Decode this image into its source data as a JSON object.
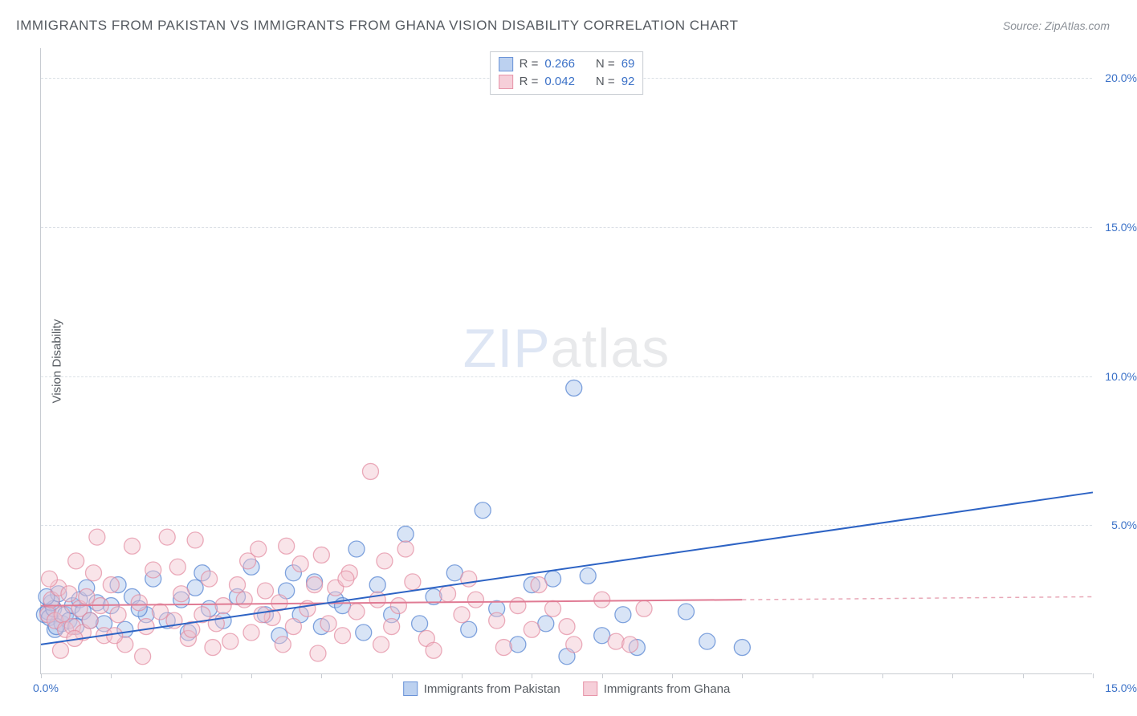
{
  "title": "IMMIGRANTS FROM PAKISTAN VS IMMIGRANTS FROM GHANA VISION DISABILITY CORRELATION CHART",
  "source_label": "Source: ZipAtlas.com",
  "watermark": {
    "part1": "ZIP",
    "part2": "atlas"
  },
  "y_axis_title": "Vision Disability",
  "chart": {
    "type": "scatter",
    "xlim": [
      0,
      15
    ],
    "ylim": [
      0,
      21
    ],
    "x_ticks_major": [
      0,
      1,
      2,
      3,
      4,
      5,
      6,
      7,
      8,
      9,
      10,
      11,
      12,
      13,
      14,
      15
    ],
    "x_tick_labels": {
      "0": "0.0%",
      "15": "15.0%"
    },
    "y_ticks": [
      5,
      10,
      15,
      20
    ],
    "y_tick_labels": {
      "5": "5.0%",
      "10": "10.0%",
      "15": "15.0%",
      "20": "20.0%"
    },
    "background_color": "#ffffff",
    "grid_color": "#dbe0e6",
    "axis_color": "#c8ccd2",
    "marker_radius": 10,
    "marker_opacity": 0.45,
    "marker_stroke_width": 1.3,
    "series": [
      {
        "name": "Immigrants from Pakistan",
        "fill_color": "#a9c3ea",
        "stroke_color": "#4f7fd0",
        "swatch_fill": "#bcd1f0",
        "swatch_border": "#6b94d8",
        "R": "0.266",
        "N": "69",
        "trend": {
          "x1": 0,
          "y1": 1.0,
          "x2": 15,
          "y2": 6.1,
          "color": "#2d63c4",
          "width": 2
        },
        "points": [
          [
            0.05,
            2.0
          ],
          [
            0.1,
            2.1
          ],
          [
            0.12,
            1.9
          ],
          [
            0.15,
            2.4
          ],
          [
            0.18,
            2.2
          ],
          [
            0.2,
            1.5
          ],
          [
            0.25,
            2.7
          ],
          [
            0.3,
            1.7
          ],
          [
            0.35,
            2.0
          ],
          [
            0.4,
            1.8
          ],
          [
            0.45,
            2.3
          ],
          [
            0.5,
            1.6
          ],
          [
            0.55,
            2.5
          ],
          [
            0.6,
            2.1
          ],
          [
            0.7,
            1.8
          ],
          [
            0.8,
            2.4
          ],
          [
            0.9,
            1.7
          ],
          [
            1.0,
            2.3
          ],
          [
            1.1,
            3.0
          ],
          [
            1.2,
            1.5
          ],
          [
            1.3,
            2.6
          ],
          [
            1.5,
            2.0
          ],
          [
            1.6,
            3.2
          ],
          [
            1.8,
            1.8
          ],
          [
            2.0,
            2.5
          ],
          [
            2.1,
            1.4
          ],
          [
            2.3,
            3.4
          ],
          [
            2.4,
            2.2
          ],
          [
            2.6,
            1.8
          ],
          [
            2.8,
            2.6
          ],
          [
            3.0,
            3.6
          ],
          [
            3.2,
            2.0
          ],
          [
            3.4,
            1.3
          ],
          [
            3.5,
            2.8
          ],
          [
            3.7,
            2.0
          ],
          [
            3.9,
            3.1
          ],
          [
            4.0,
            1.6
          ],
          [
            4.2,
            2.5
          ],
          [
            4.5,
            4.2
          ],
          [
            4.6,
            1.4
          ],
          [
            4.8,
            3.0
          ],
          [
            5.0,
            2.0
          ],
          [
            5.2,
            4.7
          ],
          [
            5.4,
            1.7
          ],
          [
            5.6,
            2.6
          ],
          [
            5.9,
            3.4
          ],
          [
            6.1,
            1.5
          ],
          [
            6.3,
            5.5
          ],
          [
            6.5,
            2.2
          ],
          [
            6.8,
            1.0
          ],
          [
            7.0,
            3.0
          ],
          [
            7.2,
            1.7
          ],
          [
            7.3,
            3.2
          ],
          [
            7.5,
            0.6
          ],
          [
            7.6,
            9.6
          ],
          [
            7.8,
            3.3
          ],
          [
            8.0,
            1.3
          ],
          [
            8.3,
            2.0
          ],
          [
            8.5,
            0.9
          ],
          [
            9.2,
            2.1
          ],
          [
            9.5,
            1.1
          ],
          [
            10.0,
            0.9
          ],
          [
            0.08,
            2.6
          ],
          [
            0.22,
            1.6
          ],
          [
            0.65,
            2.9
          ],
          [
            1.4,
            2.2
          ],
          [
            2.2,
            2.9
          ],
          [
            3.6,
            3.4
          ],
          [
            4.3,
            2.3
          ]
        ]
      },
      {
        "name": "Immigrants from Ghana",
        "fill_color": "#f2c3cf",
        "stroke_color": "#e38aa0",
        "swatch_fill": "#f6cfd9",
        "swatch_border": "#e795a9",
        "R": "0.042",
        "N": "92",
        "trend_solid": {
          "x1": 0,
          "y1": 2.3,
          "x2": 10,
          "y2": 2.5,
          "color": "#e07b94",
          "width": 2
        },
        "trend_dashed": {
          "x1": 10,
          "y1": 2.5,
          "x2": 15,
          "y2": 2.6,
          "color": "#e8a8b7",
          "width": 1.5
        },
        "points": [
          [
            0.1,
            2.0
          ],
          [
            0.15,
            2.5
          ],
          [
            0.2,
            1.8
          ],
          [
            0.25,
            2.9
          ],
          [
            0.3,
            2.0
          ],
          [
            0.35,
            1.5
          ],
          [
            0.4,
            2.7
          ],
          [
            0.45,
            1.6
          ],
          [
            0.5,
            3.8
          ],
          [
            0.55,
            2.2
          ],
          [
            0.6,
            1.4
          ],
          [
            0.65,
            2.6
          ],
          [
            0.7,
            1.8
          ],
          [
            0.8,
            4.6
          ],
          [
            0.85,
            2.3
          ],
          [
            0.9,
            1.3
          ],
          [
            1.0,
            3.0
          ],
          [
            1.1,
            2.0
          ],
          [
            1.2,
            1.0
          ],
          [
            1.3,
            4.3
          ],
          [
            1.4,
            2.4
          ],
          [
            1.5,
            1.6
          ],
          [
            1.6,
            3.5
          ],
          [
            1.7,
            2.1
          ],
          [
            1.8,
            4.6
          ],
          [
            1.9,
            1.8
          ],
          [
            2.0,
            2.7
          ],
          [
            2.1,
            1.2
          ],
          [
            2.2,
            4.5
          ],
          [
            2.3,
            2.0
          ],
          [
            2.4,
            3.2
          ],
          [
            2.5,
            1.7
          ],
          [
            2.6,
            2.3
          ],
          [
            2.7,
            1.1
          ],
          [
            2.8,
            3.0
          ],
          [
            2.9,
            2.5
          ],
          [
            3.0,
            1.4
          ],
          [
            3.1,
            4.2
          ],
          [
            3.2,
            2.8
          ],
          [
            3.3,
            1.9
          ],
          [
            3.4,
            2.4
          ],
          [
            3.5,
            4.3
          ],
          [
            3.6,
            1.6
          ],
          [
            3.7,
            3.7
          ],
          [
            3.8,
            2.2
          ],
          [
            3.9,
            3.0
          ],
          [
            4.0,
            4.0
          ],
          [
            4.1,
            1.7
          ],
          [
            4.2,
            2.9
          ],
          [
            4.3,
            1.3
          ],
          [
            4.4,
            3.4
          ],
          [
            4.5,
            2.1
          ],
          [
            4.7,
            6.8
          ],
          [
            4.8,
            2.5
          ],
          [
            4.9,
            3.8
          ],
          [
            5.0,
            1.6
          ],
          [
            5.1,
            2.3
          ],
          [
            5.3,
            3.1
          ],
          [
            5.5,
            1.2
          ],
          [
            5.8,
            2.7
          ],
          [
            6.0,
            2.0
          ],
          [
            6.2,
            2.5
          ],
          [
            6.5,
            1.8
          ],
          [
            6.8,
            2.3
          ],
          [
            7.0,
            1.5
          ],
          [
            7.3,
            2.2
          ],
          [
            7.5,
            1.6
          ],
          [
            8.0,
            2.5
          ],
          [
            8.2,
            1.1
          ],
          [
            8.6,
            2.2
          ],
          [
            0.12,
            3.2
          ],
          [
            0.28,
            0.8
          ],
          [
            0.48,
            1.2
          ],
          [
            0.75,
            3.4
          ],
          [
            1.05,
            1.3
          ],
          [
            1.45,
            0.6
          ],
          [
            1.95,
            3.6
          ],
          [
            2.45,
            0.9
          ],
          [
            2.95,
            3.8
          ],
          [
            3.45,
            1.0
          ],
          [
            3.95,
            0.7
          ],
          [
            4.35,
            3.2
          ],
          [
            4.85,
            1.0
          ],
          [
            5.2,
            4.2
          ],
          [
            5.6,
            0.8
          ],
          [
            6.1,
            3.2
          ],
          [
            6.6,
            0.9
          ],
          [
            7.1,
            3.0
          ],
          [
            7.6,
            1.0
          ],
          [
            8.4,
            1.0
          ],
          [
            3.15,
            2.0
          ],
          [
            2.15,
            1.5
          ]
        ]
      }
    ]
  },
  "legend_top_labels": {
    "R": "R =",
    "N": "N ="
  },
  "colors": {
    "title": "#555a60",
    "tick_label": "#3b71c7"
  }
}
